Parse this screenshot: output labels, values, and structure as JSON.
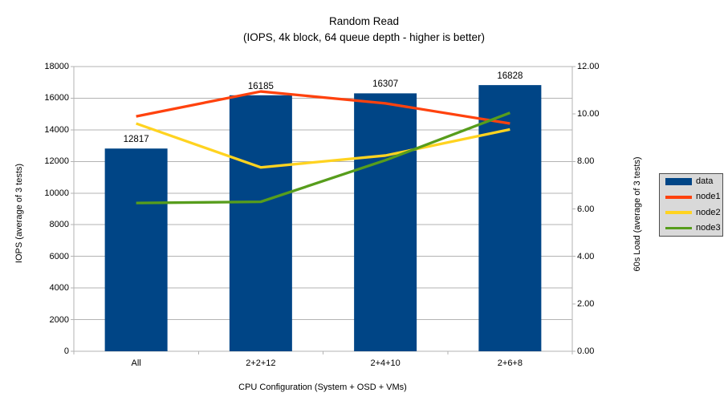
{
  "title": "Random Read",
  "subtitle": "(IOPS, 4k block, 64 queue depth - higher is better)",
  "chart_data": {
    "type": "bar",
    "categories": [
      "All",
      "2+2+12",
      "2+4+10",
      "2+6+8"
    ],
    "bar_series": {
      "name": "data",
      "color": "#004586",
      "axis": "left",
      "values": [
        12817,
        16185,
        16307,
        16828
      ]
    },
    "line_series": [
      {
        "name": "node1",
        "color": "#ff420e",
        "axis": "right",
        "values": [
          9.9,
          10.95,
          10.45,
          9.6
        ]
      },
      {
        "name": "node2",
        "color": "#ffd320",
        "axis": "right",
        "values": [
          9.6,
          7.75,
          8.25,
          9.35
        ]
      },
      {
        "name": "node3",
        "color": "#579d1c",
        "axis": "right",
        "values": [
          6.25,
          6.3,
          8.05,
          10.05
        ]
      }
    ],
    "left_axis": {
      "title": "IOPS (average of 3 tests)",
      "min": 0,
      "max": 18000,
      "step": 2000
    },
    "right_axis": {
      "title": "60s Load (average of 3 tests)",
      "min": 0,
      "max": 12,
      "step": 2,
      "decimals": 2
    },
    "x_axis": {
      "title": "CPU Configuration (System + OSD + VMs)"
    },
    "legend": {
      "position": "right",
      "entries": [
        "data",
        "node1",
        "node2",
        "node3"
      ]
    },
    "grid": true,
    "grid_color": "#b3b3b3",
    "bar_labels_shown": true
  }
}
